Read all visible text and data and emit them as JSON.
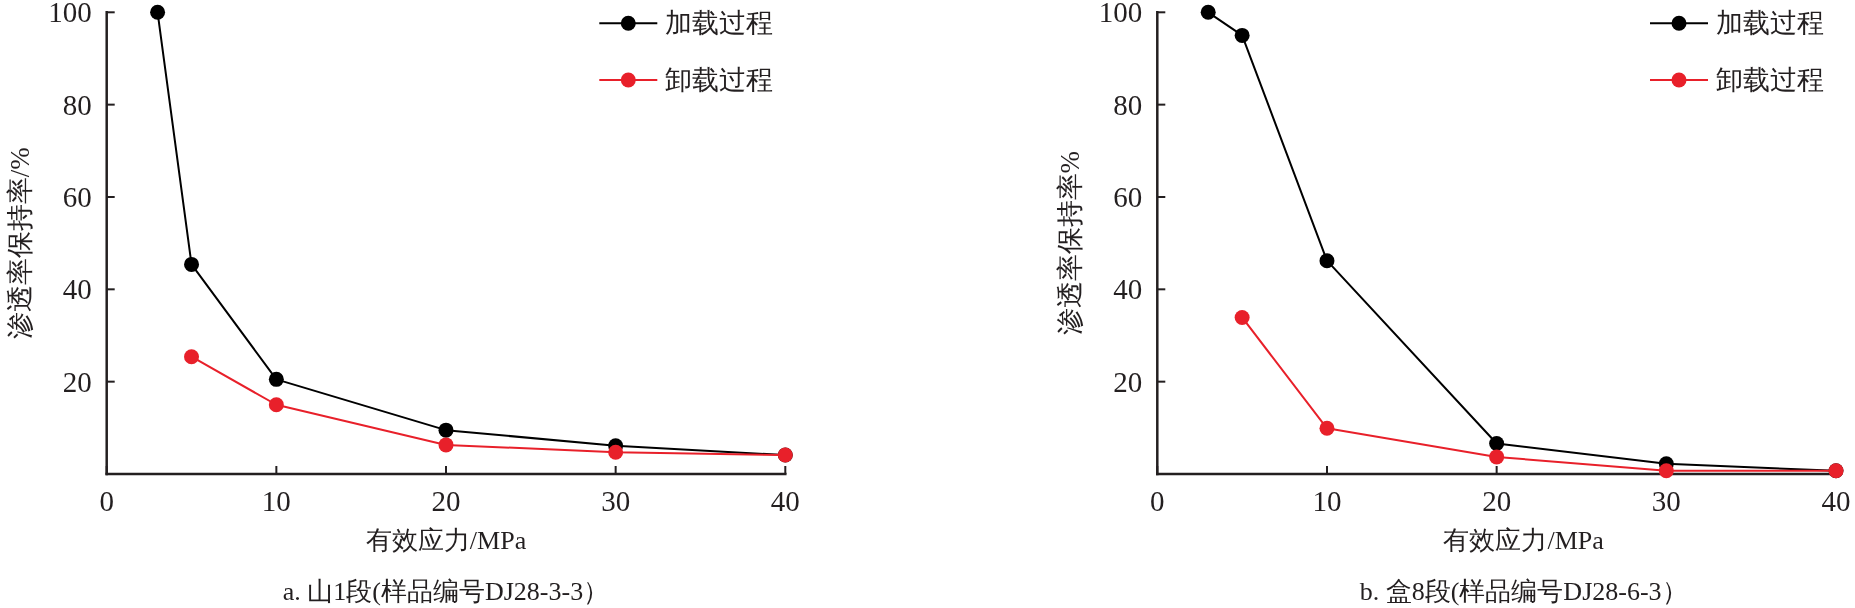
{
  "chart_data": [
    {
      "type": "line",
      "title": "a. 山1段(样品编号DJ28-3-3）",
      "xlabel": "有效应力/MPa",
      "ylabel": "渗透率保持率/%",
      "xlim": [
        0,
        40
      ],
      "ylim": [
        0,
        100
      ],
      "xticks": [
        0,
        10,
        20,
        30,
        40
      ],
      "yticks": [
        20,
        40,
        60,
        80,
        100
      ],
      "legend": "top right",
      "marker": "circle",
      "series": [
        {
          "name": "加载过程",
          "color": "#000000",
          "x": [
            3,
            5,
            10,
            20,
            30,
            40
          ],
          "values": [
            100,
            45.4,
            20.5,
            9.5,
            6.1,
            4.1
          ]
        },
        {
          "name": "卸载过程",
          "color": "#e8202a",
          "x": [
            5,
            10,
            20,
            30,
            40
          ],
          "values": [
            25.4,
            15.0,
            6.3,
            4.7,
            4.1
          ]
        }
      ]
    },
    {
      "type": "line",
      "title": "b. 盒8段(样品编号DJ28-6-3）",
      "xlabel": "有效应力/MPa",
      "ylabel": "渗透率保持率%",
      "xlim": [
        0,
        40
      ],
      "ylim": [
        0,
        100
      ],
      "xticks": [
        0,
        10,
        20,
        30,
        40
      ],
      "yticks": [
        20,
        40,
        60,
        80,
        100
      ],
      "legend": "top right",
      "marker": "circle",
      "series": [
        {
          "name": "加载过程",
          "color": "#000000",
          "x": [
            3,
            5,
            10,
            20,
            30,
            40
          ],
          "values": [
            100,
            95.0,
            46.2,
            6.6,
            2.2,
            0.7
          ]
        },
        {
          "name": "卸载过程",
          "color": "#e8202a",
          "x": [
            5,
            10,
            20,
            30,
            40
          ],
          "values": [
            33.9,
            9.9,
            3.7,
            0.7,
            0.7
          ]
        }
      ]
    }
  ]
}
